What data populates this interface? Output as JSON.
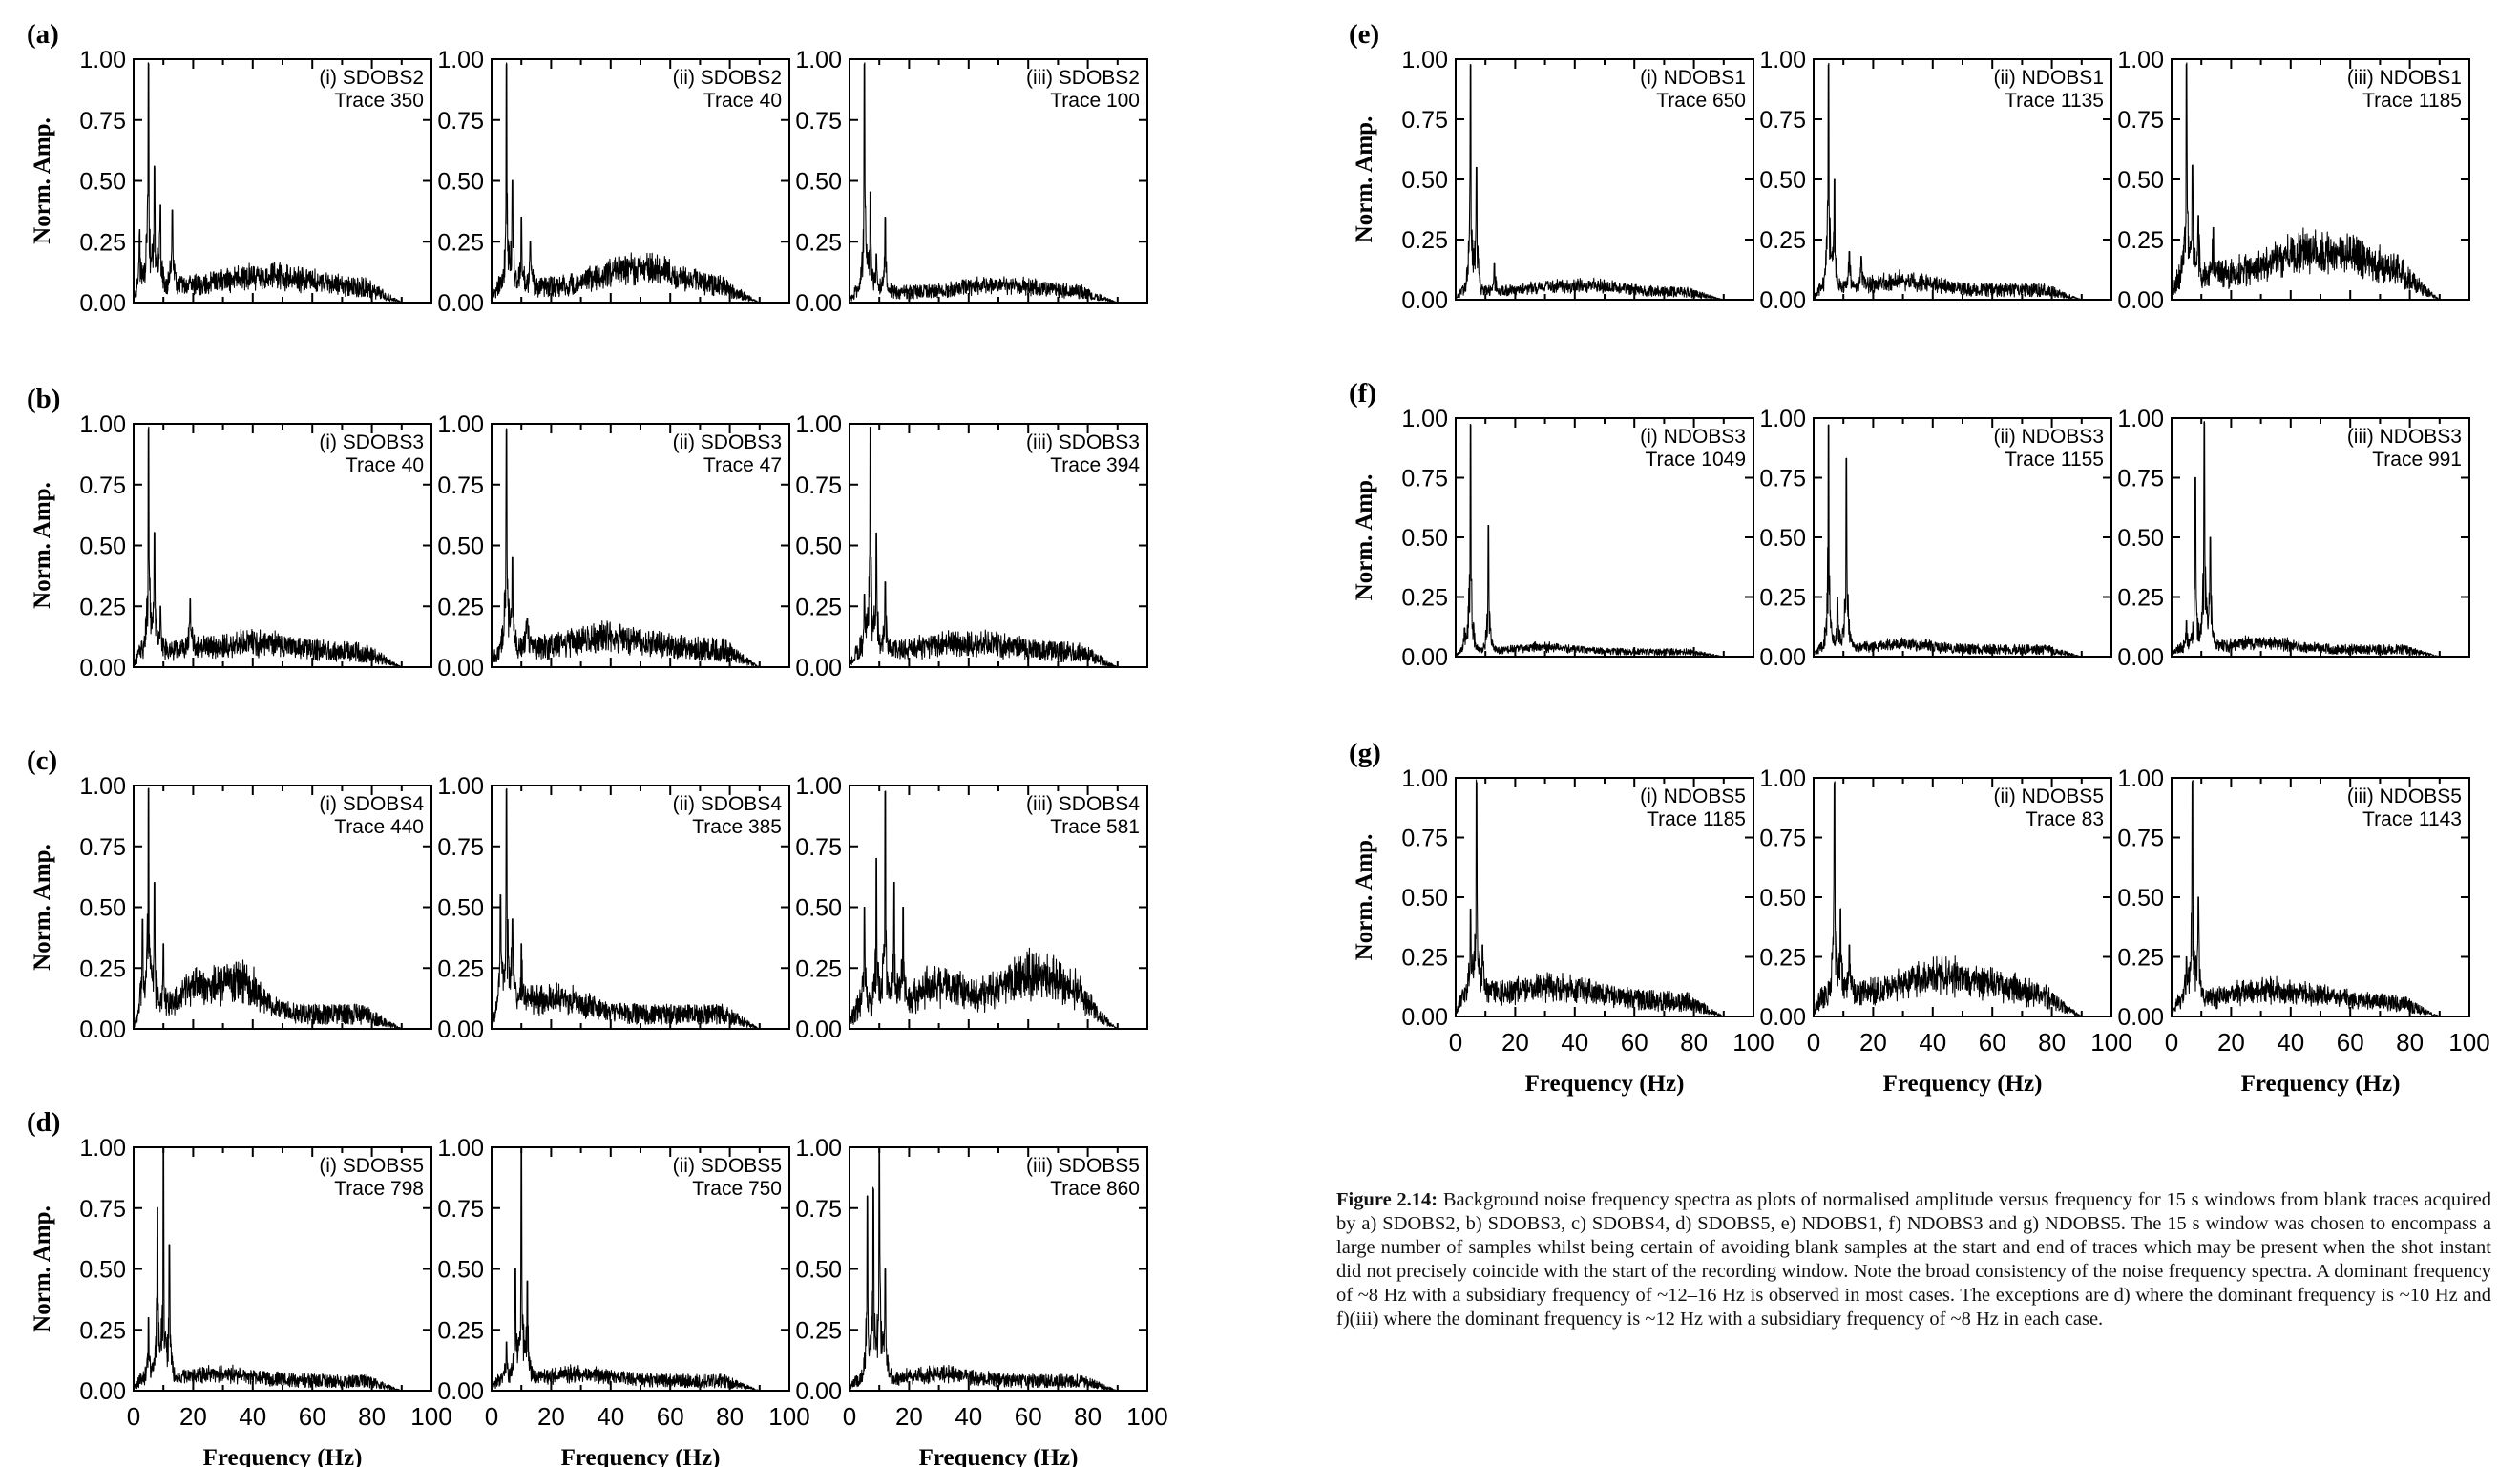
{
  "figure": {
    "caption_label": "Figure 2.14:",
    "caption_text": "Background noise frequency spectra as plots of normalised amplitude versus frequency for 15 s windows from blank traces acquired by a) SDOBS2, b) SDOBS3, c) SDOBS4, d) SDOBS5, e) NDOBS1, f) NDOBS3 and g) NDOBS5. The 15 s window was chosen to encompass a large number of samples whilst being certain of avoiding blank samples at the start and end of traces which may be present when the shot instant did not precisely coincide with the start of the recording window. Note the broad consistency of the noise frequency spectra. A dominant frequency of ~8 Hz with a subsidiary frequency of ~12–16 Hz is observed in most cases. The exceptions are d) where the dominant frequency is ~10 Hz and f)(iii) where the dominant frequency is ~12 Hz with a subsidiary frequency of ~8 Hz in each case."
  },
  "chart_data": {
    "type": "line",
    "ylabel": "Norm. Amp.",
    "xlabel": "Frequency (Hz)",
    "xlim": [
      0,
      100
    ],
    "ylim": [
      0,
      1
    ],
    "xticks": [
      "0",
      "20",
      "40",
      "60",
      "80",
      "100"
    ],
    "yticks": [
      "0.00",
      "0.25",
      "0.50",
      "0.75",
      "1.00"
    ],
    "grid": false,
    "groups": [
      {
        "label": "(a)",
        "panels": [
          {
            "label": "(i) SDOBS2",
            "trace": "Trace 350",
            "peaks": [
              [
                5,
                0.97
              ],
              [
                7,
                0.55
              ],
              [
                9,
                0.4
              ],
              [
                13,
                0.38
              ],
              [
                2,
                0.3
              ]
            ],
            "background": 0.06,
            "hump": [
              45,
              0.05,
              20
            ]
          },
          {
            "label": "(ii) SDOBS2",
            "trace": "Trace 40",
            "peaks": [
              [
                5,
                0.97
              ],
              [
                7,
                0.5
              ],
              [
                10,
                0.35
              ],
              [
                13,
                0.25
              ]
            ],
            "background": 0.06,
            "hump": [
              50,
              0.08,
              18
            ]
          },
          {
            "label": "(iii) SDOBS2",
            "trace": "Trace 100",
            "peaks": [
              [
                5,
                0.97
              ],
              [
                7,
                0.45
              ],
              [
                12,
                0.35
              ],
              [
                9,
                0.2
              ]
            ],
            "background": 0.04,
            "hump": [
              50,
              0.03,
              20
            ]
          }
        ]
      },
      {
        "label": "(b)",
        "panels": [
          {
            "label": "(i) SDOBS3",
            "trace": "Trace 40",
            "peaks": [
              [
                5,
                0.97
              ],
              [
                7,
                0.55
              ],
              [
                9,
                0.25
              ],
              [
                19,
                0.28
              ]
            ],
            "background": 0.06,
            "hump": [
              40,
              0.04,
              20
            ]
          },
          {
            "label": "(ii) SDOBS3",
            "trace": "Trace 47",
            "peaks": [
              [
                5,
                0.97
              ],
              [
                7,
                0.45
              ],
              [
                12,
                0.2
              ]
            ],
            "background": 0.07,
            "hump": [
              40,
              0.05,
              20
            ]
          },
          {
            "label": "(iii) SDOBS3",
            "trace": "Trace 394",
            "peaks": [
              [
                7,
                0.97
              ],
              [
                9,
                0.55
              ],
              [
                12,
                0.35
              ],
              [
                5,
                0.3
              ]
            ],
            "background": 0.06,
            "hump": [
              40,
              0.04,
              20
            ]
          }
        ]
      },
      {
        "label": "(c)",
        "panels": [
          {
            "label": "(i) SDOBS4",
            "trace": "Trace 440",
            "peaks": [
              [
                5,
                0.97
              ],
              [
                7,
                0.6
              ],
              [
                3,
                0.45
              ],
              [
                10,
                0.35
              ]
            ],
            "background": 0.06,
            "hump": [
              35,
              0.14,
              10
            ],
            "hump2": [
              20,
              0.1,
              8
            ]
          },
          {
            "label": "(ii) SDOBS4",
            "trace": "Trace 385",
            "peaks": [
              [
                5,
                0.97
              ],
              [
                3,
                0.55
              ],
              [
                7,
                0.45
              ],
              [
                10,
                0.35
              ]
            ],
            "background": 0.06,
            "hump": [
              20,
              0.07,
              15
            ]
          },
          {
            "label": "(iii) SDOBS4",
            "trace": "Trace 581",
            "peaks": [
              [
                12,
                0.97
              ],
              [
                9,
                0.7
              ],
              [
                15,
                0.6
              ],
              [
                18,
                0.5
              ],
              [
                5,
                0.5
              ]
            ],
            "background": 0.08,
            "hump": [
              62,
              0.14,
              18
            ],
            "hump2": [
              30,
              0.1,
              10
            ]
          }
        ]
      },
      {
        "label": "(d)",
        "panels": [
          {
            "label": "(i) SDOBS5",
            "trace": "Trace 798",
            "peaks": [
              [
                10,
                0.97
              ],
              [
                8,
                0.75
              ],
              [
                12,
                0.6
              ],
              [
                5,
                0.3
              ]
            ],
            "background": 0.04,
            "hump": [
              30,
              0.03,
              15
            ]
          },
          {
            "label": "(ii) SDOBS5",
            "trace": "Trace 750",
            "peaks": [
              [
                10,
                0.97
              ],
              [
                8,
                0.5
              ],
              [
                12,
                0.45
              ],
              [
                5,
                0.2
              ]
            ],
            "background": 0.04,
            "hump": [
              30,
              0.03,
              15
            ]
          },
          {
            "label": "(iii) SDOBS5",
            "trace": "Trace 860",
            "peaks": [
              [
                10,
                0.97
              ],
              [
                8,
                0.82
              ],
              [
                6,
                0.8
              ],
              [
                12,
                0.5
              ]
            ],
            "background": 0.04,
            "hump": [
              30,
              0.03,
              15
            ]
          }
        ]
      },
      {
        "label": "(e)",
        "panels": [
          {
            "label": "(i) NDOBS1",
            "trace": "Trace 650",
            "peaks": [
              [
                5,
                0.97
              ],
              [
                7,
                0.55
              ],
              [
                13,
                0.15
              ]
            ],
            "background": 0.03,
            "hump": [
              40,
              0.03,
              20
            ]
          },
          {
            "label": "(ii) NDOBS1",
            "trace": "Trace 1135",
            "peaks": [
              [
                5,
                0.97
              ],
              [
                7,
                0.5
              ],
              [
                12,
                0.2
              ],
              [
                16,
                0.18
              ]
            ],
            "background": 0.04,
            "hump": [
              30,
              0.04,
              15
            ]
          },
          {
            "label": "(iii) NDOBS1",
            "trace": "Trace 1185",
            "peaks": [
              [
                5,
                0.97
              ],
              [
                7,
                0.55
              ],
              [
                9,
                0.35
              ],
              [
                14,
                0.3
              ]
            ],
            "background": 0.08,
            "hump": [
              50,
              0.12,
              25
            ]
          }
        ]
      },
      {
        "label": "(f)",
        "panels": [
          {
            "label": "(i) NDOBS3",
            "trace": "Trace 1049",
            "peaks": [
              [
                5,
                0.97
              ],
              [
                11,
                0.55
              ],
              [
                3,
                0.12
              ]
            ],
            "background": 0.02,
            "hump": [
              30,
              0.02,
              15
            ]
          },
          {
            "label": "(ii) NDOBS3",
            "trace": "Trace 1155",
            "peaks": [
              [
                5,
                0.97
              ],
              [
                11,
                0.83
              ],
              [
                8,
                0.25
              ]
            ],
            "background": 0.03,
            "hump": [
              30,
              0.02,
              15
            ]
          },
          {
            "label": "(iii) NDOBS3",
            "trace": "Trace 991",
            "peaks": [
              [
                11,
                0.97
              ],
              [
                13,
                0.5
              ],
              [
                8,
                0.75
              ],
              [
                5,
                0.15
              ]
            ],
            "background": 0.03,
            "hump": [
              30,
              0.03,
              15
            ]
          }
        ]
      },
      {
        "label": "(g)",
        "panels": [
          {
            "label": "(i) NDOBS5",
            "trace": "Trace 1185",
            "peaks": [
              [
                7,
                0.97
              ],
              [
                5,
                0.45
              ],
              [
                9,
                0.3
              ]
            ],
            "background": 0.06,
            "hump": [
              30,
              0.06,
              25
            ]
          },
          {
            "label": "(ii) NDOBS5",
            "trace": "Trace 83",
            "peaks": [
              [
                7,
                0.97
              ],
              [
                9,
                0.45
              ],
              [
                12,
                0.3
              ]
            ],
            "background": 0.07,
            "hump": [
              45,
              0.1,
              25
            ]
          },
          {
            "label": "(iii) NDOBS5",
            "trace": "Trace 1143",
            "peaks": [
              [
                7,
                0.97
              ],
              [
                9,
                0.5
              ],
              [
                5,
                0.25
              ]
            ],
            "background": 0.05,
            "hump": [
              35,
              0.06,
              25
            ]
          }
        ]
      }
    ]
  }
}
